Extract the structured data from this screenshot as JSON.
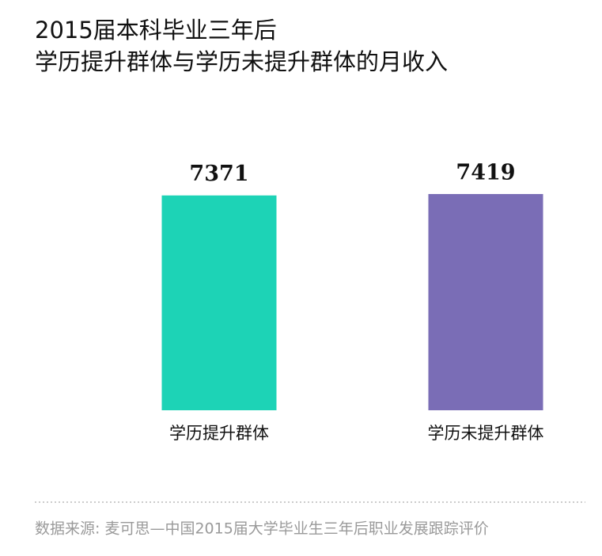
{
  "chart_data": {
    "type": "bar",
    "title": [
      "2015届本科毕业三年后",
      "学历提升群体与学历未提升群体的月收入"
    ],
    "categories": [
      "学历提升群体",
      "学历未提升群体"
    ],
    "values": [
      7371,
      7419
    ],
    "colors": [
      "#1dd3b6",
      "#7a6db6"
    ],
    "ylim": [
      0,
      7500
    ],
    "source": "数据来源: 麦可思—中国2015届大学毕业生三年后职业发展跟踪评价"
  }
}
